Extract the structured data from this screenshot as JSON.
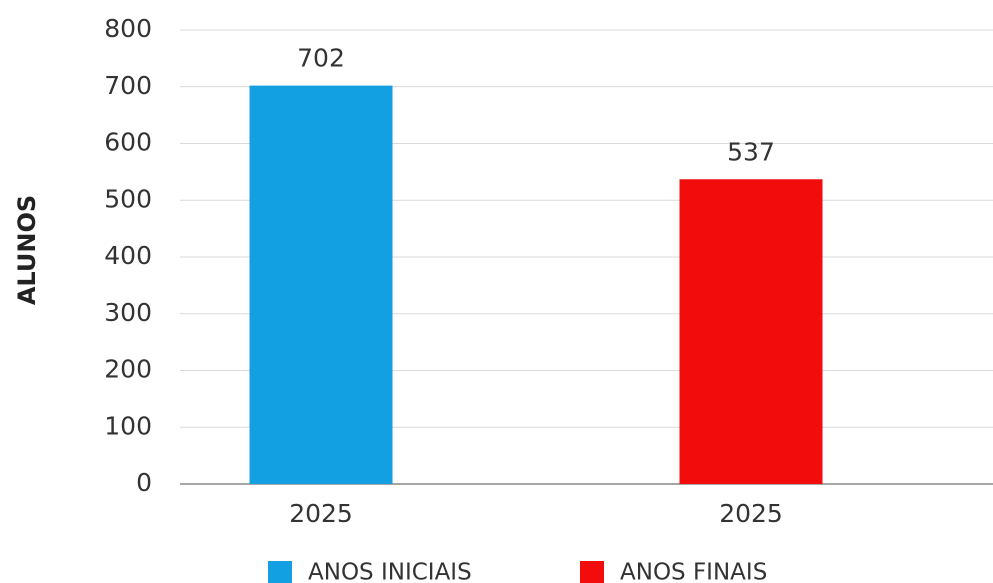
{
  "chart_data": {
    "type": "bar",
    "y_label": "ALUNOS",
    "categories": [
      "2025",
      "2025"
    ],
    "series": [
      {
        "name": "ANOS INICIAIS",
        "color": "#13a0e3",
        "values": [
          702,
          null
        ]
      },
      {
        "name": "ANOS FINAIS",
        "color": "#f20c0c",
        "values": [
          null,
          537
        ]
      }
    ],
    "ylim": [
      0,
      800
    ],
    "yticks": [
      0,
      100,
      200,
      300,
      400,
      500,
      600,
      700,
      800
    ],
    "grid": true
  }
}
